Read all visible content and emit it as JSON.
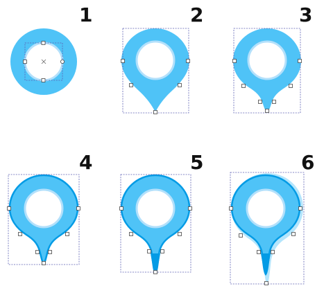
{
  "steps": [
    {
      "label": "1"
    },
    {
      "label": "2"
    },
    {
      "label": "3"
    },
    {
      "label": "4"
    },
    {
      "label": "5"
    },
    {
      "label": "6"
    }
  ],
  "colors": {
    "fill": "#4fc3f7",
    "stroke": "#039be5",
    "hole_ring": "#b3e0fb",
    "glow": "#b3e5fc",
    "selection_box": "#5b5fb3",
    "label": "#111111"
  },
  "icons": [
    "map-pin-icon"
  ]
}
